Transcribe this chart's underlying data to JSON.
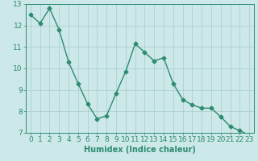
{
  "x": [
    0,
    1,
    2,
    3,
    4,
    5,
    6,
    7,
    8,
    9,
    10,
    11,
    12,
    13,
    14,
    15,
    16,
    17,
    18,
    19,
    20,
    21,
    22,
    23
  ],
  "y": [
    12.5,
    12.1,
    12.8,
    11.8,
    10.3,
    9.3,
    8.35,
    7.65,
    7.8,
    8.85,
    9.85,
    11.15,
    10.75,
    10.35,
    10.5,
    9.3,
    8.55,
    8.3,
    8.15,
    8.15,
    7.75,
    7.3,
    7.1,
    6.9
  ],
  "line_color": "#2d8b72",
  "marker": "D",
  "marker_size": 2.5,
  "line_width": 1.0,
  "xlabel": "Humidex (Indice chaleur)",
  "xlim": [
    -0.5,
    23.5
  ],
  "ylim": [
    7,
    13
  ],
  "yticks": [
    7,
    8,
    9,
    10,
    11,
    12,
    13
  ],
  "xticks": [
    0,
    1,
    2,
    3,
    4,
    5,
    6,
    7,
    8,
    9,
    10,
    11,
    12,
    13,
    14,
    15,
    16,
    17,
    18,
    19,
    20,
    21,
    22,
    23
  ],
  "bg_color": "#cce8e8",
  "grid_color": "#b0d0d0",
  "axes_color": "#2d8b72",
  "tick_color": "#2d8b72",
  "label_color": "#2d8b72",
  "xlabel_fontsize": 7,
  "tick_fontsize": 6.5
}
